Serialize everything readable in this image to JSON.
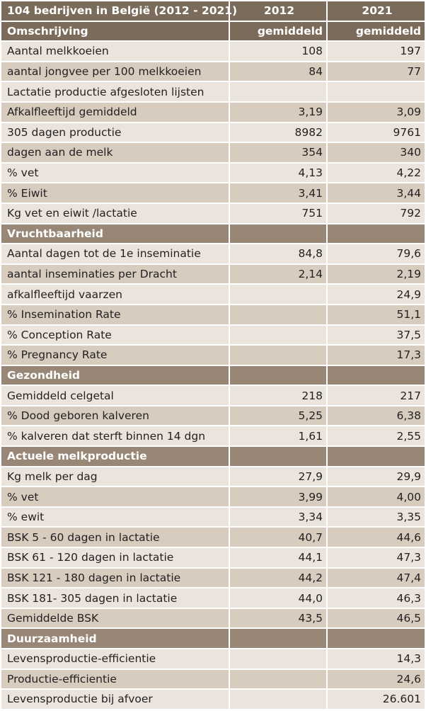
{
  "header": {
    "title": "104 bedrijven in België (2012 - 2021)",
    "year_1": "2012",
    "year_2": "2021",
    "col_label": "Omschrijving",
    "col_2_label": "gemiddeld",
    "col_3_label": "gemiddeld"
  },
  "rows": [
    {
      "type": "row",
      "label": "Aantal melkkoeien",
      "v2012": "108",
      "v2021": "197"
    },
    {
      "type": "row",
      "label": "aantal jongvee per 100 melkkoeien",
      "v2012": "84",
      "v2021": "77"
    },
    {
      "type": "row",
      "label": "Lactatie productie afgesloten lijsten",
      "v2012": "",
      "v2021": ""
    },
    {
      "type": "row",
      "label": "Afkalfleeftijd gemiddeld",
      "v2012": "3,19",
      "v2021": "3,09"
    },
    {
      "type": "row",
      "label": "305 dagen productie",
      "v2012": "8982",
      "v2021": "9761"
    },
    {
      "type": "row",
      "label": "dagen aan de melk",
      "v2012": "354",
      "v2021": "340"
    },
    {
      "type": "row",
      "label": "% vet",
      "v2012": "4,13",
      "v2021": "4,22"
    },
    {
      "type": "row",
      "label": "% Eiwit",
      "v2012": "3,41",
      "v2021": "3,44"
    },
    {
      "type": "row",
      "label": "Kg vet en eiwit /lactatie",
      "v2012": "751",
      "v2021": "792"
    },
    {
      "type": "section",
      "label": "Vruchtbaarheid"
    },
    {
      "type": "row",
      "label": "Aantal dagen tot de 1e inseminatie",
      "v2012": "84,8",
      "v2021": "79,6"
    },
    {
      "type": "row",
      "label": "aantal inseminaties per Dracht",
      "v2012": "2,14",
      "v2021": "2,19"
    },
    {
      "type": "row",
      "label": "afkalfleeftijd vaarzen",
      "v2012": "",
      "v2021": "24,9"
    },
    {
      "type": "row",
      "label": "% Insemination Rate",
      "v2012": "",
      "v2021": "51,1"
    },
    {
      "type": "row",
      "label": "% Conception Rate",
      "v2012": "",
      "v2021": "37,5"
    },
    {
      "type": "row",
      "label": "% Pregnancy Rate",
      "v2012": "",
      "v2021": "17,3"
    },
    {
      "type": "section",
      "label": "Gezondheid"
    },
    {
      "type": "row",
      "label": "Gemiddeld celgetal",
      "v2012": "218",
      "v2021": "217"
    },
    {
      "type": "row",
      "label": "% Dood geboren kalveren",
      "v2012": "5,25",
      "v2021": "6,38"
    },
    {
      "type": "row",
      "label": "% kalveren dat sterft binnen 14 dgn",
      "v2012": "1,61",
      "v2021": "2,55"
    },
    {
      "type": "section",
      "label": "Actuele melkproductie"
    },
    {
      "type": "row",
      "label": "Kg melk per dag",
      "v2012": "27,9",
      "v2021": "29,9"
    },
    {
      "type": "row",
      "label": "% vet",
      "v2012": "3,99",
      "v2021": "4,00"
    },
    {
      "type": "row",
      "label": "% ewit",
      "v2012": "3,34",
      "v2021": "3,35"
    },
    {
      "type": "row",
      "label": "BSK  5 - 60 dagen in lactatie",
      "v2012": "40,7",
      "v2021": "44,6"
    },
    {
      "type": "row",
      "label": "BSK  61 - 120 dagen in lactatie",
      "v2012": "44,1",
      "v2021": "47,3"
    },
    {
      "type": "row",
      "label": "BSK  121 - 180 dagen in lactatie",
      "v2012": "44,2",
      "v2021": "47,4"
    },
    {
      "type": "row",
      "label": "BSK  181- 305 dagen in lactatie",
      "v2012": "44,0",
      "v2021": "46,3"
    },
    {
      "type": "row",
      "label": "Gemiddelde BSK",
      "v2012": "43,5",
      "v2021": "46,5"
    },
    {
      "type": "section",
      "label": "Duurzaamheid"
    },
    {
      "type": "row",
      "label": "Levensproductie-efficientie",
      "v2012": "",
      "v2021": "14,3"
    },
    {
      "type": "row",
      "label": "Productie-efficientie",
      "v2012": "",
      "v2021": "24,6"
    },
    {
      "type": "row",
      "label": "Levensproductie bij afvoer",
      "v2012": "",
      "v2021": "26.601"
    }
  ],
  "colors": {
    "header_bg": "#7b6b5a",
    "section_bg": "#988676",
    "row_light": "#ebe4dc",
    "row_dark": "#d7ccbe",
    "text": "#231f20"
  }
}
